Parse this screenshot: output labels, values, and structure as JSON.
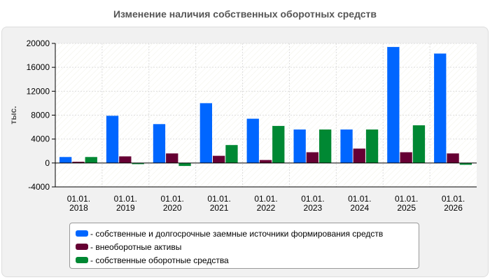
{
  "chart_data": {
    "type": "bar",
    "title": "Изменение наличия собственных оборотных средств",
    "ylabel": "тыс.",
    "xlabel": "",
    "ylim": [
      -4000,
      20000
    ],
    "yticks": [
      "-4000",
      "0",
      "4000",
      "8000",
      "12000",
      "16000",
      "20000"
    ],
    "categories": [
      [
        "01.01.",
        "2018"
      ],
      [
        "01.01.",
        "2019"
      ],
      [
        "01.01.",
        "2020"
      ],
      [
        "01.01.",
        "2021"
      ],
      [
        "01.01.",
        "2022"
      ],
      [
        "01.01.",
        "2023"
      ],
      [
        "01.01.",
        "2024"
      ],
      [
        "01.01.",
        "2025"
      ],
      [
        "01.01.",
        "2026"
      ]
    ],
    "series": [
      {
        "name": "- собственные и долгосрочные заемные источники формирования средств",
        "color": "#0066ff",
        "values": [
          1000,
          7900,
          6500,
          10000,
          7400,
          5600,
          5600,
          19400,
          18300
        ]
      },
      {
        "name": "- внеоборотные активы",
        "color": "#660033",
        "values": [
          200,
          1100,
          1600,
          1200,
          500,
          1800,
          2400,
          1800,
          1600
        ]
      },
      {
        "name": "- собственные оборотные средства",
        "color": "#008833",
        "values": [
          1000,
          -200,
          -500,
          3000,
          6200,
          5600,
          5600,
          6300,
          -300
        ]
      }
    ],
    "grid": true,
    "legend": "bottom"
  }
}
